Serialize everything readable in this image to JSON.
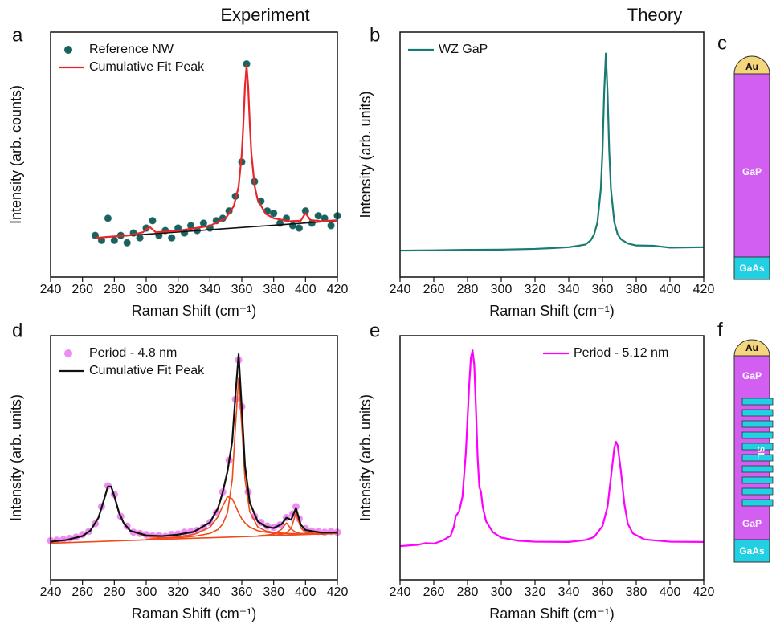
{
  "chart_data": [
    {
      "type": "line",
      "panel_label": "a",
      "title": "Experiment",
      "x_label": "Raman Shift (cm⁻¹)",
      "y_label": "Intensity (arb. counts)",
      "xlim": [
        240,
        420
      ],
      "xticks": [
        240,
        260,
        280,
        300,
        320,
        340,
        360,
        380,
        400,
        420
      ],
      "ylim": [
        0,
        100
      ],
      "legend": "upper left",
      "series": [
        {
          "name": "Reference NW",
          "style": "markers",
          "color": "#19625f",
          "x": [
            268,
            272,
            276,
            280,
            284,
            288,
            292,
            296,
            300,
            304,
            308,
            312,
            316,
            320,
            324,
            328,
            332,
            336,
            340,
            344,
            348,
            352,
            356,
            360,
            363,
            368,
            372,
            376,
            380,
            384,
            388,
            392,
            396,
            400,
            404,
            408,
            412,
            416,
            420
          ],
          "values": [
            17,
            15,
            24,
            15,
            17,
            14,
            18,
            16,
            20,
            23,
            17,
            19,
            16,
            20,
            18,
            21,
            19,
            22,
            20,
            23,
            24,
            27,
            33,
            47,
            87,
            39,
            31,
            27,
            26,
            22,
            24,
            21,
            20,
            27,
            22,
            25,
            24,
            21,
            25
          ]
        },
        {
          "name": "Cumulative Fit Peak",
          "style": "line",
          "color": "#e8262a",
          "x": [
            268,
            280,
            290,
            298,
            302,
            306,
            320,
            340,
            350,
            355,
            358,
            360,
            361,
            362,
            363,
            364,
            365,
            366,
            368,
            370,
            375,
            380,
            390,
            397,
            400,
            403,
            410,
            420
          ],
          "values": [
            16,
            16.6,
            17.1,
            18.3,
            20.6,
            18.3,
            18.9,
            20.9,
            24.1,
            29,
            36.9,
            50.3,
            62.6,
            77.9,
            86.4,
            78,
            62.8,
            50.6,
            37.4,
            31.5,
            25.8,
            24,
            22.8,
            23,
            26.1,
            23.3,
            22.8,
            23.2
          ]
        }
      ],
      "components": [
        {
          "color": "#111111",
          "x": [
            268,
            420
          ],
          "values": [
            16,
            23
          ]
        }
      ]
    },
    {
      "type": "line",
      "panel_label": "b",
      "title": "Theory",
      "x_label": "Raman Shift (cm⁻¹)",
      "y_label": "Intensity (arb. units)",
      "xlim": [
        240,
        420
      ],
      "xticks": [
        240,
        260,
        280,
        300,
        320,
        340,
        360,
        380,
        400,
        420
      ],
      "ylim": [
        0,
        100
      ],
      "legend": "upper left",
      "series": [
        {
          "name": "WZ GaP",
          "style": "line",
          "color": "#1a7a74",
          "x": [
            240,
            260,
            280,
            300,
            320,
            330,
            340,
            345,
            350,
            353,
            355,
            357,
            359,
            360,
            361,
            362,
            363,
            364,
            365,
            367,
            369,
            371,
            375,
            380,
            390,
            400,
            420
          ],
          "values": [
            10.8,
            10.9,
            11.1,
            11.2,
            11.5,
            11.8,
            12.2,
            12.7,
            13.3,
            15,
            17.3,
            22.3,
            35.9,
            51.3,
            75.3,
            91.3,
            75.3,
            51.3,
            35.9,
            22.4,
            17.4,
            15.4,
            13.7,
            12.9,
            12.8,
            12,
            12.2
          ]
        }
      ]
    },
    {
      "type": "line",
      "panel_label": "d",
      "x_label": "Raman Shift (cm⁻¹)",
      "y_label": "Intensity (arb. units)",
      "xlim": [
        240,
        420
      ],
      "xticks": [
        240,
        260,
        280,
        300,
        320,
        340,
        360,
        380,
        400,
        420
      ],
      "ylim": [
        0,
        100
      ],
      "legend": "upper left",
      "series": [
        {
          "name": "Period - 4.8 nm",
          "style": "markers",
          "color": "#ee8cf0",
          "x": [
            240,
            244,
            248,
            252,
            256,
            260,
            264,
            268,
            272,
            276,
            280,
            284,
            288,
            292,
            296,
            300,
            304,
            308,
            312,
            316,
            320,
            324,
            328,
            332,
            336,
            340,
            344,
            348,
            352,
            356,
            358,
            360,
            364,
            368,
            372,
            376,
            380,
            384,
            388,
            392,
            394,
            396,
            400,
            404,
            408,
            412,
            416,
            420
          ],
          "values": [
            16,
            16.2,
            16.5,
            17,
            17.5,
            18.5,
            19.8,
            23,
            30,
            38.5,
            35,
            26,
            22,
            19.5,
            19,
            18.5,
            18,
            18.2,
            17.8,
            18.6,
            18.8,
            19.5,
            19.8,
            20.3,
            21.5,
            23.5,
            27.5,
            36,
            49,
            74,
            90,
            71,
            36,
            26,
            23.5,
            22,
            21.5,
            22.5,
            25.5,
            27,
            30,
            25,
            21,
            20,
            19.8,
            19.5,
            19.8,
            19.5
          ]
        },
        {
          "name": "Cumulative Fit Peak",
          "style": "line",
          "color": "#111111",
          "x": [
            240,
            250,
            260,
            265,
            270,
            273,
            276,
            278,
            280,
            283,
            286,
            290,
            300,
            310,
            320,
            330,
            340,
            345,
            348,
            351,
            354,
            356,
            358,
            360,
            362,
            365,
            370,
            375,
            380,
            385,
            388,
            391,
            394,
            397,
            400,
            410,
            420
          ],
          "values": [
            15.6,
            16.3,
            17.9,
            20.2,
            25.4,
            31.7,
            38.2,
            38.2,
            34.3,
            27.4,
            23.1,
            20.1,
            18.2,
            17.9,
            18.5,
            19.7,
            23.5,
            29.3,
            35.8,
            44.4,
            56.8,
            75.5,
            92.4,
            70.1,
            46.7,
            31.7,
            23.9,
            21.8,
            21.2,
            22.8,
            25.4,
            24.6,
            29.4,
            22.6,
            20.4,
            19.3,
            19.4
          ]
        }
      ],
      "components": [
        {
          "color": "#f04a1a",
          "x": [
            240,
            420
          ],
          "values": [
            15,
            19
          ]
        },
        {
          "color": "#f04a1a",
          "x": [
            240,
            250,
            260,
            265,
            270,
            273,
            276,
            278,
            280,
            283,
            286,
            290,
            300,
            310,
            320
          ],
          "values": [
            15.6,
            16.3,
            17.9,
            20.2,
            25.4,
            31.7,
            38.2,
            38.2,
            34.3,
            27.4,
            23.1,
            20.1,
            17.8,
            17.2,
            17.3
          ]
        },
        {
          "color": "#f04a1a",
          "x": [
            320,
            330,
            340,
            345,
            348,
            351,
            354,
            356,
            358,
            360,
            362,
            365,
            370,
            375,
            380,
            390,
            400,
            420
          ],
          "values": [
            17.2,
            17.8,
            19,
            20.6,
            22.8,
            27.5,
            40.9,
            62.7,
            82.6,
            62.7,
            41.1,
            27.9,
            21.7,
            20,
            19.4,
            18.9,
            18.8,
            19.2
          ]
        },
        {
          "color": "#f04a1a",
          "x": [
            300,
            310,
            320,
            330,
            340,
            345,
            348,
            351,
            354,
            356,
            358,
            360,
            362,
            365,
            370,
            375,
            380,
            390,
            400,
            420
          ],
          "values": [
            16.6,
            17,
            17.6,
            18.6,
            21.5,
            25.8,
            30.2,
            34.1,
            33.2,
            30.4,
            27.4,
            25,
            23.3,
            21.6,
            20.1,
            19.5,
            19.1,
            18.9,
            18.9,
            19.2
          ]
        },
        {
          "color": "#f04a1a",
          "x": [
            375,
            380,
            385,
            388,
            391,
            394,
            397,
            400,
            410,
            420
          ],
          "values": [
            18,
            18.3,
            18.6,
            19.2,
            21.1,
            27.4,
            21.3,
            19.4,
            18.8,
            19
          ]
        },
        {
          "color": "#f04a1a",
          "x": [
            370,
            375,
            380,
            385,
            388,
            391,
            394,
            397,
            400,
            410,
            420
          ],
          "values": [
            18,
            18.3,
            18.7,
            20.7,
            23.3,
            20.8,
            19.4,
            19,
            18.8,
            18.7,
            19
          ]
        }
      ]
    },
    {
      "type": "line",
      "panel_label": "e",
      "x_label": "Raman Shift (cm⁻¹)",
      "y_label": "Intensity (arb. units)",
      "xlim": [
        240,
        420
      ],
      "xticks": [
        240,
        260,
        280,
        300,
        320,
        340,
        360,
        380,
        400,
        420
      ],
      "ylim": [
        0,
        100
      ],
      "legend": "upper right",
      "series": [
        {
          "name": "Period - 5.12 nm",
          "style": "line",
          "color": "#ff00ff",
          "x": [
            240,
            250,
            255,
            260,
            265,
            270,
            272,
            273,
            275,
            277,
            279,
            281,
            282,
            283,
            284,
            285,
            286,
            287,
            288,
            289,
            291,
            295,
            300,
            310,
            320,
            340,
            350,
            355,
            360,
            363,
            365,
            367,
            368,
            369,
            371,
            373,
            375,
            378,
            385,
            400,
            420
          ],
          "values": [
            13.8,
            14.3,
            15,
            14.8,
            16,
            18,
            22,
            26,
            28,
            34,
            52,
            80,
            91,
            94,
            88,
            70,
            50,
            38,
            36,
            30,
            24,
            19.5,
            17.3,
            16,
            15.6,
            15.5,
            16.3,
            17.5,
            22,
            30,
            42,
            54,
            56.6,
            55,
            44,
            31,
            23,
            19,
            16.5,
            15.6,
            15.5
          ]
        }
      ]
    }
  ],
  "diagrams": [
    {
      "panel_label": "c",
      "cap": "Au",
      "body": "GaP",
      "base": "GaAs"
    },
    {
      "panel_label": "f",
      "cap": "Au",
      "top": "GaP",
      "middle": "SL",
      "bottom": "GaP",
      "base": "GaAs"
    }
  ]
}
